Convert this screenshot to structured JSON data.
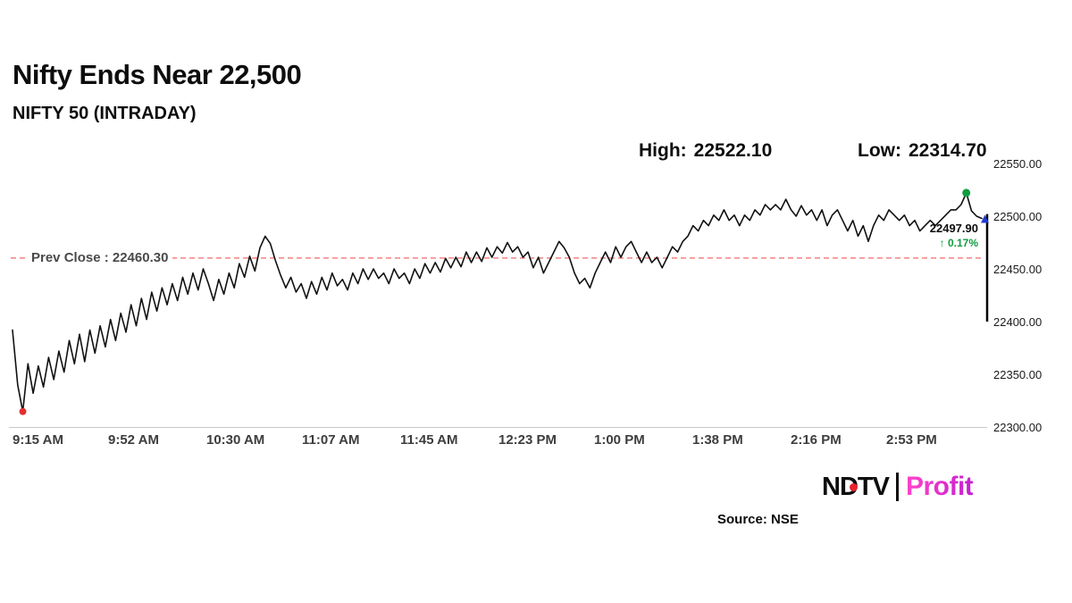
{
  "header": {
    "title": "Nifty Ends Near 22,500",
    "subtitle": "NIFTY 50 (INTRADAY)"
  },
  "stats": {
    "high_label": "High:",
    "high_value": "22522.10",
    "low_label": "Low:",
    "low_value": "22314.70"
  },
  "annotations": {
    "prev_close": "Prev Close : 22460.30",
    "last_price": "22497.90",
    "change_arrow": "↑",
    "change_value": "0.17%"
  },
  "footer": {
    "ndtv": "NDTV",
    "separator": "|",
    "profit": "Profit",
    "source": "Source: NSE"
  },
  "colors": {
    "line": "#111111",
    "prev_close_line": "#f26a6a",
    "axis_line": "#c8c8c8",
    "low_marker": "#e03131",
    "high_marker": "#0e9c3f",
    "close_marker": "#1f3bd1",
    "scale_bar": "#000000",
    "change_green": "#0e9c3f",
    "profit_pink": "#e0009f",
    "ndtv_red": "#e8222e"
  },
  "chart_data": {
    "type": "line",
    "title": "NIFTY 50 (INTRADAY)",
    "xlabel": "",
    "ylabel": "",
    "ylim": [
      22300,
      22550
    ],
    "session_minutes": 375,
    "prev_close": 22460.3,
    "high": 22522.1,
    "low": 22314.7,
    "close": 22497.9,
    "change_pct": "0.17%",
    "x_ticks": [
      {
        "m": 0,
        "label": "9:15 AM"
      },
      {
        "m": 37,
        "label": "9:52 AM"
      },
      {
        "m": 75,
        "label": "10:30 AM"
      },
      {
        "m": 112,
        "label": "11:07 AM"
      },
      {
        "m": 150,
        "label": "11:45 AM"
      },
      {
        "m": 188,
        "label": "12:23 PM"
      },
      {
        "m": 225,
        "label": "1:00 PM"
      },
      {
        "m": 263,
        "label": "1:38 PM"
      },
      {
        "m": 301,
        "label": "2:16 PM"
      },
      {
        "m": 338,
        "label": "2:53 PM"
      }
    ],
    "y_ticks": [
      {
        "v": 22550,
        "label": "22550.00"
      },
      {
        "v": 22500,
        "label": "22500.00"
      },
      {
        "v": 22450,
        "label": "22450.00"
      },
      {
        "v": 22400,
        "label": "22400.00"
      },
      {
        "v": 22350,
        "label": "22350.00"
      },
      {
        "v": 22300,
        "label": "22300.00"
      }
    ],
    "values": [
      22392,
      22340,
      22314.7,
      22360,
      22332,
      22358,
      22338,
      22366,
      22345,
      22372,
      22352,
      22382,
      22360,
      22388,
      22362,
      22392,
      22370,
      22396,
      22376,
      22402,
      22382,
      22408,
      22390,
      22416,
      22396,
      22422,
      22402,
      22428,
      22410,
      22432,
      22416,
      22436,
      22420,
      22442,
      22426,
      22446,
      22430,
      22450,
      22436,
      22420,
      22440,
      22426,
      22446,
      22432,
      22455,
      22442,
      22462,
      22448,
      22470,
      22481,
      22474,
      22458,
      22444,
      22432,
      22442,
      22428,
      22436,
      22422,
      22438,
      22426,
      22442,
      22430,
      22446,
      22434,
      22440,
      22430,
      22446,
      22436,
      22450,
      22440,
      22450,
      22441,
      22446,
      22436,
      22450,
      22441,
      22446,
      22436,
      22450,
      22441,
      22455,
      22446,
      22456,
      22447,
      22460,
      22451,
      22461,
      22452,
      22466,
      22456,
      22466,
      22457,
      22470,
      22461,
      22471,
      22465,
      22475,
      22466,
      22471,
      22461,
      22466,
      22451,
      22461,
      22446,
      22456,
      22466,
      22476,
      22470,
      22461,
      22446,
      22436,
      22441,
      22432,
      22446,
      22456,
      22466,
      22456,
      22471,
      22461,
      22471,
      22476,
      22466,
      22456,
      22466,
      22456,
      22461,
      22451,
      22461,
      22471,
      22466,
      22476,
      22481,
      22491,
      22486,
      22496,
      22491,
      22501,
      22496,
      22506,
      22496,
      22501,
      22491,
      22501,
      22496,
      22506,
      22501,
      22511,
      22506,
      22511,
      22506,
      22516,
      22506,
      22500,
      22510,
      22501,
      22506,
      22496,
      22506,
      22491,
      22501,
      22506,
      22496,
      22486,
      22496,
      22481,
      22491,
      22476,
      22491,
      22501,
      22496,
      22506,
      22501,
      22496,
      22501,
      22491,
      22496,
      22486,
      22491,
      22496,
      22491,
      22496,
      22501,
      22506,
      22506,
      22511,
      22522.1,
      22505,
      22500,
      22497.9
    ]
  }
}
